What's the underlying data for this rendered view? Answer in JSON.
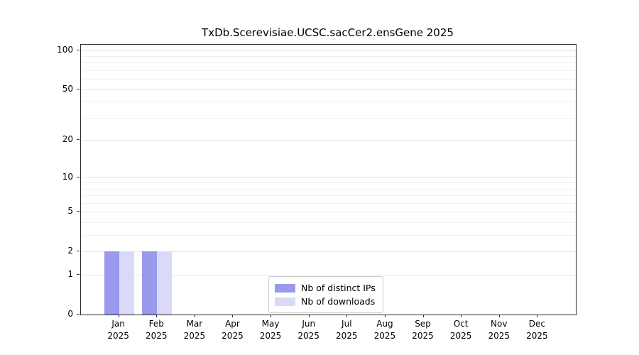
{
  "title": "TxDb.Scerevisiae.UCSC.sacCer2.ensGene 2025",
  "chart_data": {
    "type": "bar",
    "title": "TxDb.Scerevisiae.UCSC.sacCer2.ensGene 2025",
    "categories": [
      "Jan 2025",
      "Feb 2025",
      "Mar 2025",
      "Apr 2025",
      "May 2025",
      "Jun 2025",
      "Jul 2025",
      "Aug 2025",
      "Sep 2025",
      "Oct 2025",
      "Nov 2025",
      "Dec 2025"
    ],
    "series": [
      {
        "name": "Nb of distinct IPs",
        "color": "#9999ee",
        "values": [
          2,
          2,
          0,
          0,
          0,
          0,
          0,
          0,
          0,
          0,
          0,
          0
        ]
      },
      {
        "name": "Nb of downloads",
        "color": "#dadaf8",
        "values": [
          2,
          2,
          0,
          0,
          0,
          0,
          0,
          0,
          0,
          0,
          0,
          0
        ]
      }
    ],
    "xlabel": "",
    "ylabel": "",
    "scale": "log1p",
    "ylim": [
      0,
      110
    ],
    "yticks": [
      0,
      1,
      2,
      5,
      10,
      20,
      50,
      100
    ],
    "minor_yticks": [
      3,
      4,
      6,
      7,
      8,
      9,
      30,
      40,
      60,
      70,
      80,
      90
    ],
    "grid": true,
    "legend_position": "bottom-center"
  }
}
